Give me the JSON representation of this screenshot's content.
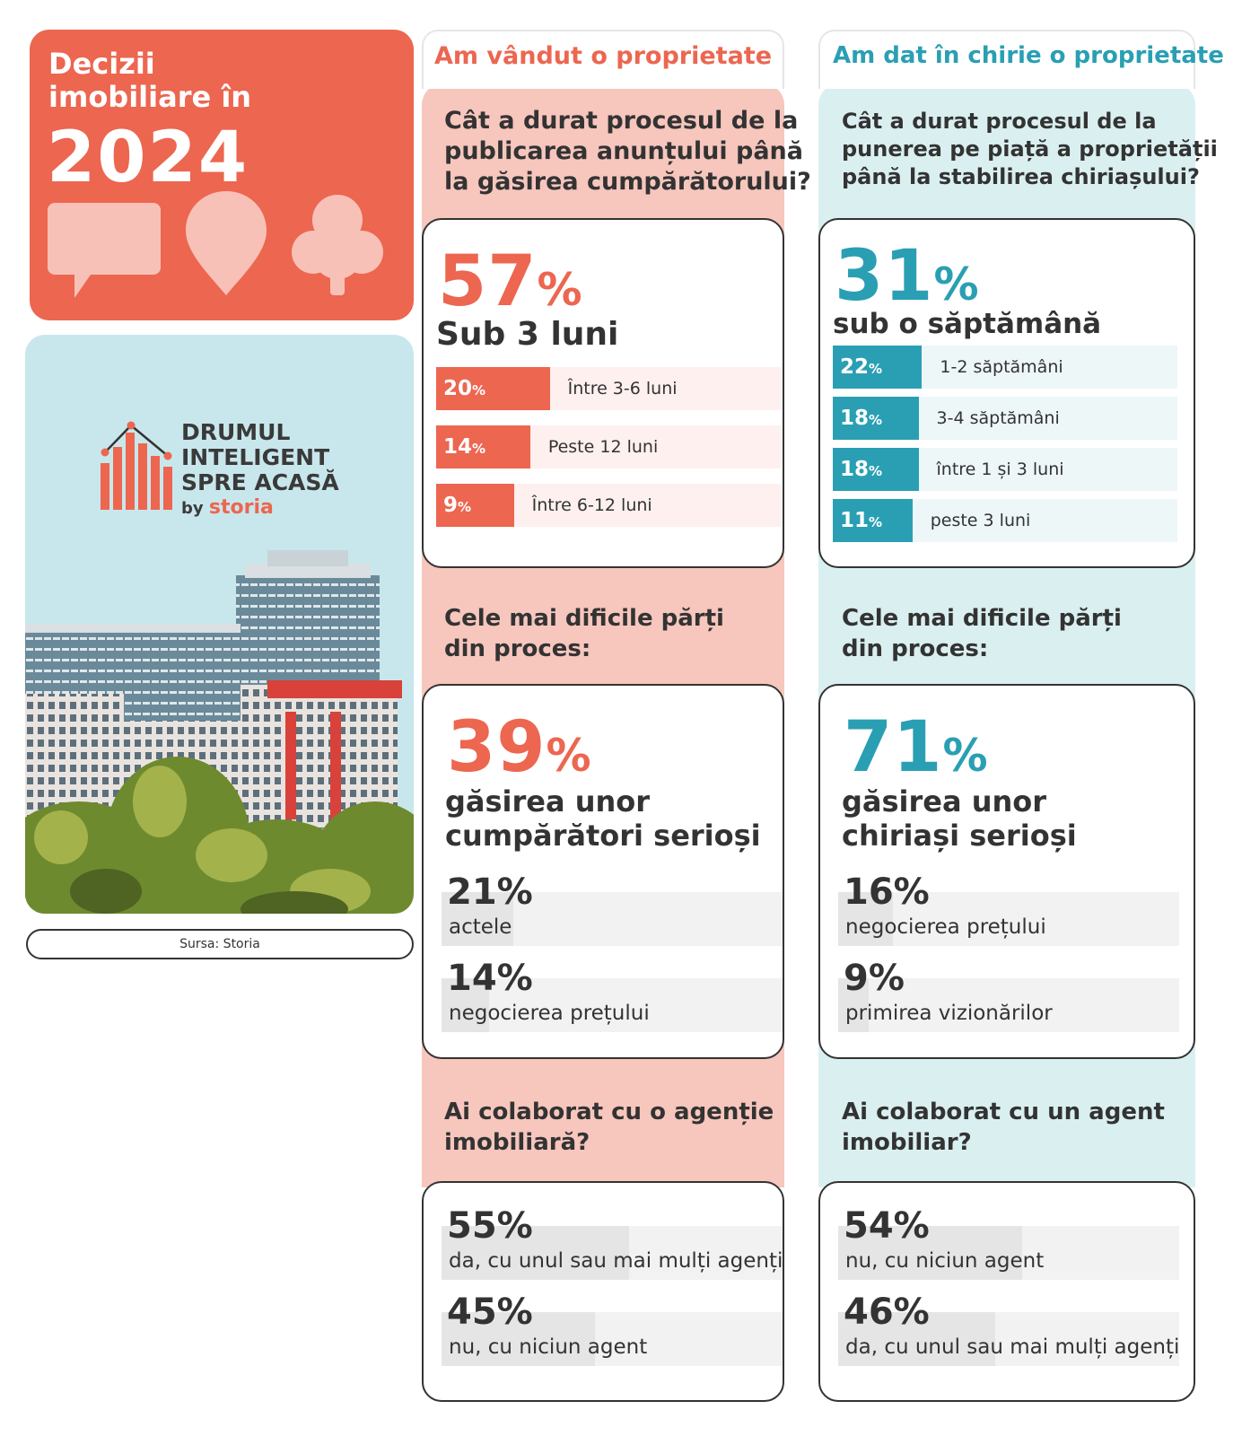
{
  "header": {
    "title_line1": "Decizii",
    "title_line2": "imobiliare în",
    "year": "2024"
  },
  "logo": {
    "line1": "DRUMUL",
    "line2": "INTELIGENT",
    "line3": "SPRE ACASĂ",
    "by": "by",
    "brand": "storia"
  },
  "source": "Sursa: Storia",
  "colors": {
    "sold": "#ec6650",
    "sold_bg": "#f7c6bd",
    "sold_track": "#fdf0ee",
    "rent": "#2a9fb3",
    "rent_bg": "#daeff0",
    "rent_track": "#edf7f8"
  },
  "chart_data": [
    {
      "type": "bar",
      "title": "Am vândut o proprietate",
      "question": "Cât a durat procesul de la publicarea anunțului până la găsirea cumpărătorului?",
      "highlight": {
        "value": 57,
        "label": "Sub 3 luni"
      },
      "categories": [
        "Între 3-6 luni",
        "Peste 12 luni",
        "Între 6-12 luni"
      ],
      "values": [
        20,
        14,
        9
      ],
      "unit": "%"
    },
    {
      "type": "bar",
      "title": "Am dat în chirie o proprietate",
      "question": "Cât a durat procesul de la punerea pe piață a proprietății până la stabilirea chiriașului?",
      "highlight": {
        "value": 31,
        "label": "sub o săptămână"
      },
      "categories": [
        "1-2 săptămâni",
        "3-4 săptămâni",
        "între 1 și 3 luni",
        "peste 3 luni"
      ],
      "values": [
        22,
        18,
        18,
        11
      ],
      "unit": "%"
    },
    {
      "type": "bar",
      "question": "Cele mai dificile părți din proces:",
      "highlight": {
        "value": 39,
        "label": "găsirea unor cumpărători serioși"
      },
      "categories": [
        "actele",
        "negocierea prețului"
      ],
      "values": [
        21,
        14
      ],
      "unit": "%"
    },
    {
      "type": "bar",
      "question": "Cele mai dificile părți din proces:",
      "highlight": {
        "value": 71,
        "label": "găsirea unor chiriași serioși"
      },
      "categories": [
        "negocierea prețului",
        "primirea vizionărilor"
      ],
      "values": [
        16,
        9
      ],
      "unit": "%"
    },
    {
      "type": "bar",
      "question": "Ai colaborat cu o agenție imobiliară?",
      "categories": [
        "da, cu unul sau mai mulți agenți",
        "nu, cu niciun agent"
      ],
      "values": [
        55,
        45
      ],
      "unit": "%"
    },
    {
      "type": "bar",
      "question": "Ai colaborat cu un agent imobiliar?",
      "categories": [
        "nu, cu niciun agent",
        "da, cu unul sau mai mulți agenți"
      ],
      "values": [
        54,
        46
      ],
      "unit": "%"
    }
  ],
  "text": {
    "sold_title": "Am vândut o proprietate",
    "rent_title": "Am dat în chirie o proprietate",
    "sold_q1_l1": "Cât a durat procesul de la",
    "sold_q1_l2": "publicarea anunțului până",
    "sold_q1_l3": "la găsirea cumpărătorului?",
    "rent_q1_l1": "Cât a durat procesul de la",
    "rent_q1_l2": "punerea pe piață a proprietății",
    "rent_q1_l3": "până la stabilirea chiriașului?",
    "sold_big1": "57",
    "sold_big1_label": "Sub 3 luni",
    "rent_big1": "31",
    "rent_big1_label": "sub o săptămână",
    "pct": "%",
    "q2_l1": "Cele mai dificile părți",
    "q2_l2": "din proces:",
    "sold_big2": "39",
    "sold_big2_l1": "găsirea unor",
    "sold_big2_l2": "cumpărători serioși",
    "rent_big2": "71",
    "rent_big2_l1": "găsirea unor",
    "rent_big2_l2": "chiriași serioși",
    "sold_q3_l1": "Ai colaborat cu o agenție",
    "sold_q3_l2": "imobiliară?",
    "rent_q3_l1": "Ai colaborat cu un agent",
    "rent_q3_l2": "imobiliar?"
  }
}
